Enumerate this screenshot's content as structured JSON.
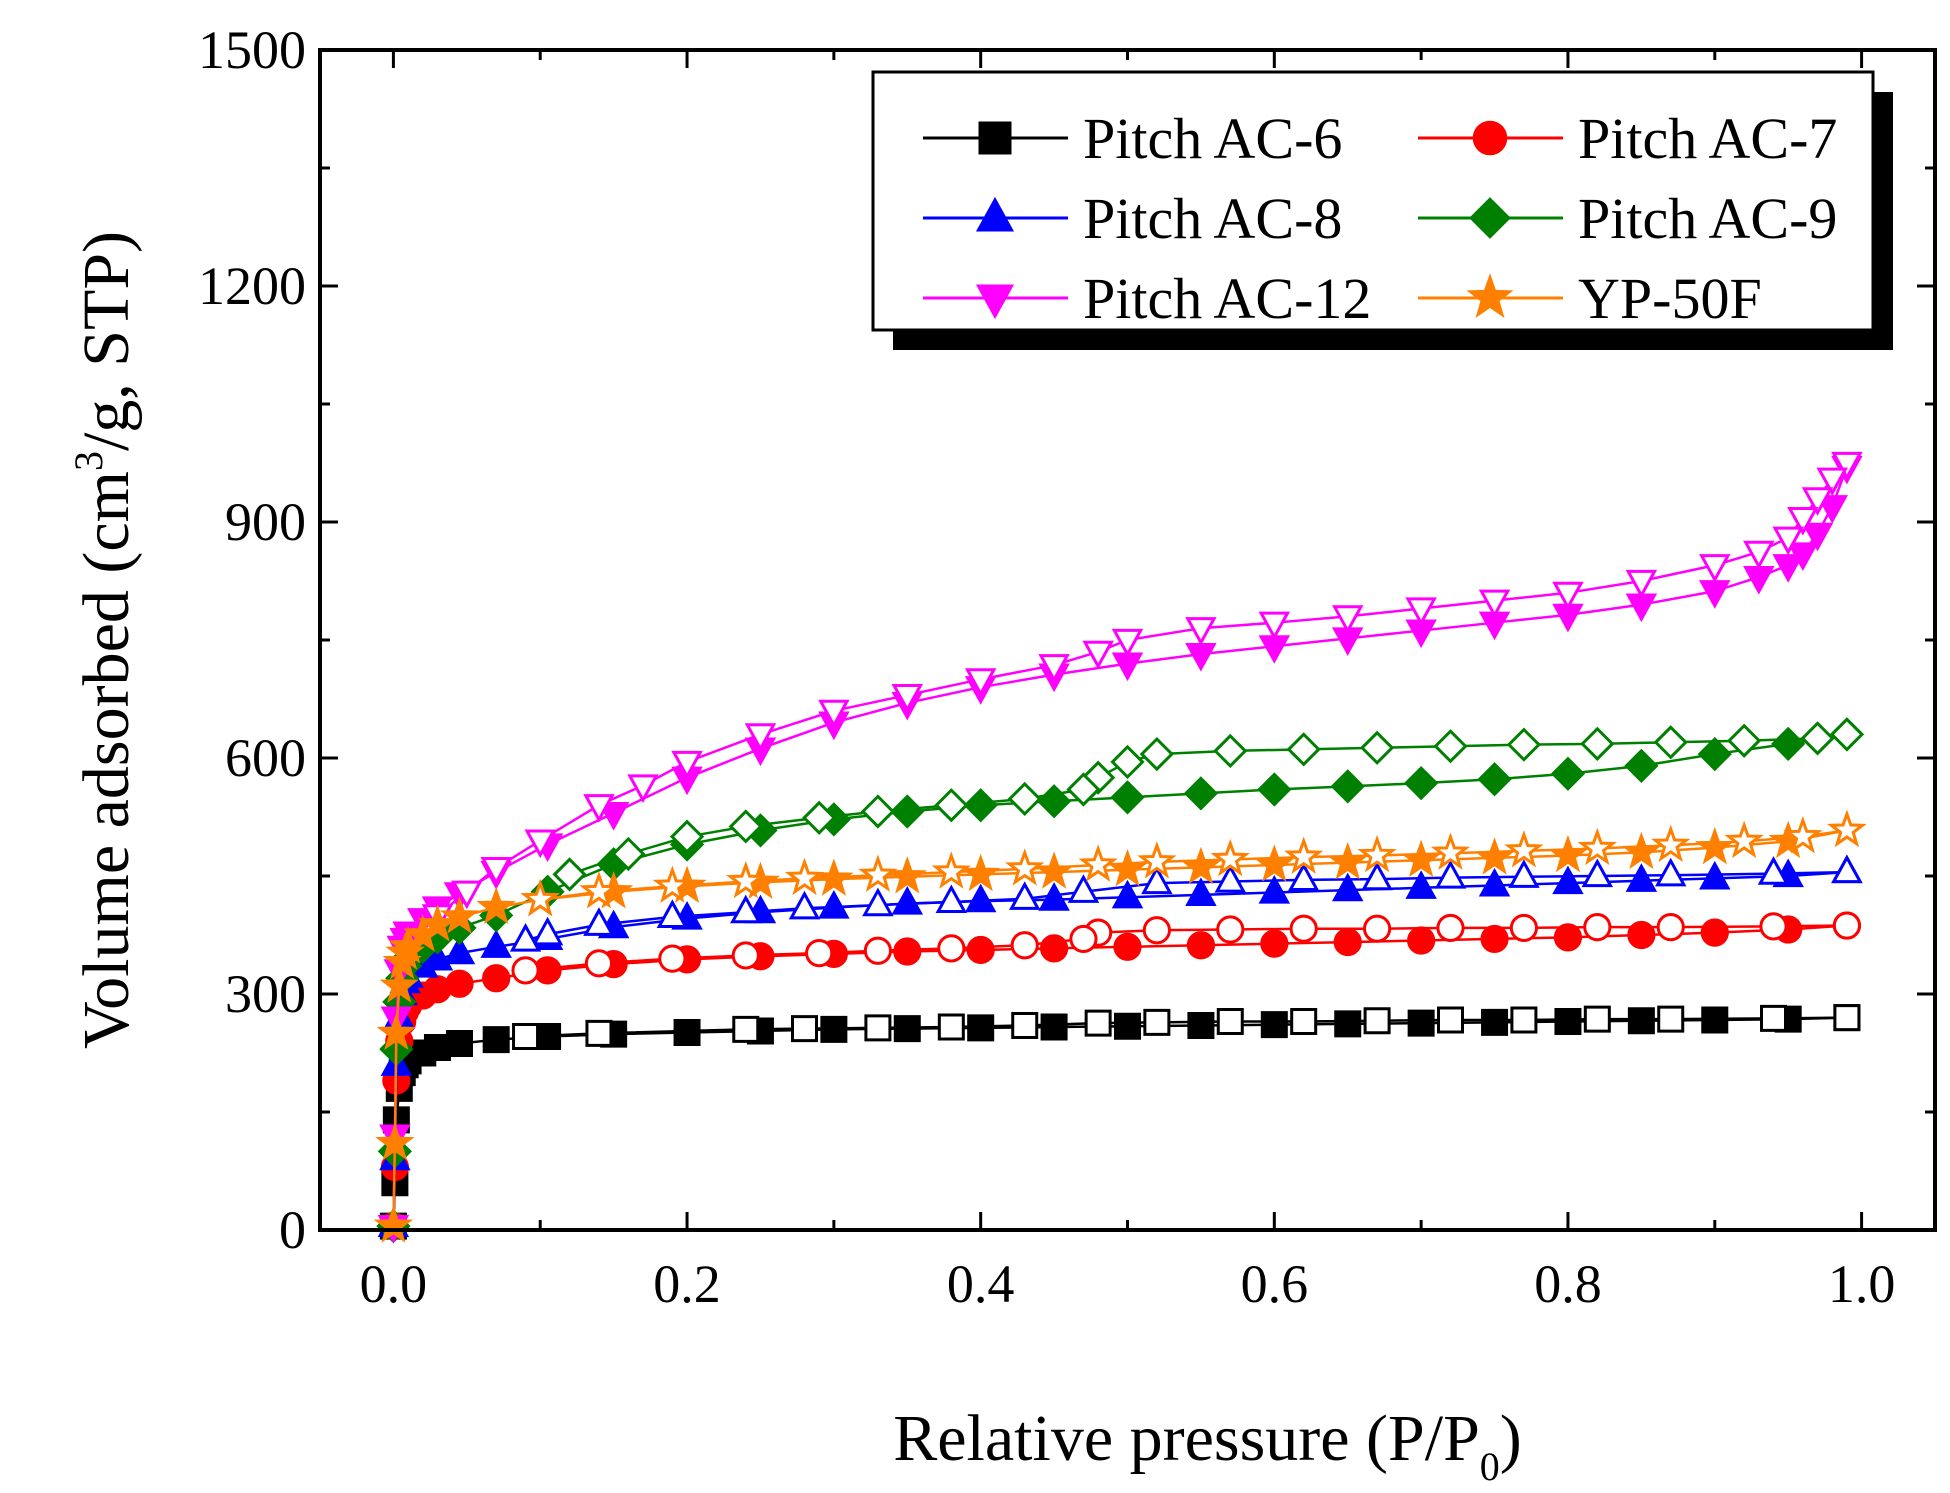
{
  "chart_data": {
    "type": "scatter",
    "xlabel": "Relative pressure (P/P",
    "xlabel_subscript": "0",
    "xlabel_end": ")",
    "ylabel": "Volume adsorbed (cm",
    "ylabel_superscript": "3",
    "ylabel_end": "/g, STP)",
    "xlim": [
      -0.05,
      1.05
    ],
    "ylim": [
      0,
      1500
    ],
    "xticks": [
      0.0,
      0.2,
      0.4,
      0.6,
      0.8,
      1.0
    ],
    "xtick_labels": [
      "0.0",
      "0.2",
      "0.4",
      "0.6",
      "0.8",
      "1.0"
    ],
    "yticks": [
      0,
      300,
      600,
      900,
      1200,
      1500
    ],
    "ytick_labels": [
      "0",
      "300",
      "600",
      "900",
      "1200",
      "1500"
    ],
    "legend_position": "top-right",
    "series": [
      {
        "name": "Pitch AC-6",
        "color": "#000000",
        "marker": "square",
        "adsorption": {
          "x": [
            0.0,
            0.001,
            0.002,
            0.004,
            0.006,
            0.008,
            0.01,
            0.02,
            0.03,
            0.045,
            0.07,
            0.105,
            0.15,
            0.2,
            0.25,
            0.3,
            0.35,
            0.4,
            0.45,
            0.5,
            0.55,
            0.6,
            0.65,
            0.7,
            0.75,
            0.8,
            0.85,
            0.9,
            0.95,
            0.99
          ],
          "y": [
            5,
            60,
            140,
            180,
            200,
            210,
            215,
            225,
            232,
            237,
            242,
            246,
            249,
            251,
            253,
            255,
            256,
            257,
            258,
            259,
            260,
            261,
            262,
            263,
            264,
            265,
            266,
            267,
            268,
            270
          ]
        },
        "desorption": {
          "x": [
            0.99,
            0.94,
            0.87,
            0.82,
            0.77,
            0.72,
            0.67,
            0.62,
            0.57,
            0.52,
            0.48,
            0.43,
            0.38,
            0.33,
            0.28,
            0.24,
            0.14,
            0.09
          ],
          "y": [
            270,
            269,
            268,
            268,
            267,
            267,
            266,
            265,
            265,
            264,
            263,
            260,
            258,
            257,
            256,
            255,
            250,
            246
          ]
        }
      },
      {
        "name": "Pitch AC-7",
        "color": "#ff0000",
        "marker": "circle",
        "adsorption": {
          "x": [
            0.0,
            0.001,
            0.002,
            0.004,
            0.006,
            0.008,
            0.01,
            0.02,
            0.03,
            0.045,
            0.07,
            0.105,
            0.15,
            0.2,
            0.25,
            0.3,
            0.35,
            0.4,
            0.45,
            0.5,
            0.55,
            0.6,
            0.65,
            0.7,
            0.75,
            0.8,
            0.85,
            0.9,
            0.95,
            0.99
          ],
          "y": [
            5,
            80,
            190,
            240,
            265,
            278,
            285,
            298,
            306,
            313,
            320,
            330,
            338,
            344,
            348,
            351,
            354,
            356,
            358,
            360,
            362,
            364,
            366,
            368,
            370,
            372,
            375,
            378,
            382,
            387
          ]
        },
        "desorption": {
          "x": [
            0.99,
            0.94,
            0.87,
            0.82,
            0.77,
            0.72,
            0.67,
            0.62,
            0.57,
            0.52,
            0.48,
            0.47,
            0.43,
            0.38,
            0.33,
            0.29,
            0.24,
            0.19,
            0.14,
            0.09
          ],
          "y": [
            387,
            386,
            385,
            385,
            384,
            384,
            383,
            383,
            382,
            381,
            378,
            370,
            362,
            358,
            355,
            352,
            349,
            345,
            339,
            330
          ]
        }
      },
      {
        "name": "Pitch AC-8",
        "color": "#0000ff",
        "marker": "triangle-up",
        "adsorption": {
          "x": [
            0.0,
            0.001,
            0.002,
            0.004,
            0.006,
            0.008,
            0.01,
            0.02,
            0.03,
            0.045,
            0.07,
            0.105,
            0.15,
            0.2,
            0.25,
            0.3,
            0.35,
            0.4,
            0.45,
            0.5,
            0.55,
            0.6,
            0.65,
            0.7,
            0.75,
            0.8,
            0.85,
            0.9,
            0.95,
            0.99
          ],
          "y": [
            5,
            90,
            210,
            270,
            300,
            315,
            322,
            335,
            344,
            352,
            360,
            370,
            385,
            396,
            404,
            410,
            415,
            418,
            420,
            423,
            426,
            429,
            432,
            435,
            438,
            441,
            444,
            447,
            450,
            455
          ]
        },
        "desorption": {
          "x": [
            0.99,
            0.94,
            0.87,
            0.82,
            0.77,
            0.72,
            0.67,
            0.62,
            0.57,
            0.52,
            0.47,
            0.43,
            0.38,
            0.33,
            0.28,
            0.24,
            0.19,
            0.14,
            0.105,
            0.09
          ],
          "y": [
            455,
            453,
            451,
            450,
            449,
            448,
            446,
            445,
            443,
            441,
            430,
            421,
            417,
            413,
            409,
            404,
            398,
            388,
            376,
            368
          ]
        }
      },
      {
        "name": "Pitch AC-9",
        "color": "#008000",
        "marker": "diamond",
        "adsorption": {
          "x": [
            0.0,
            0.001,
            0.002,
            0.004,
            0.006,
            0.008,
            0.01,
            0.02,
            0.03,
            0.045,
            0.07,
            0.105,
            0.15,
            0.2,
            0.25,
            0.3,
            0.35,
            0.4,
            0.45,
            0.5,
            0.55,
            0.6,
            0.65,
            0.7,
            0.75,
            0.8,
            0.85,
            0.9,
            0.95,
            0.99
          ],
          "y": [
            5,
            100,
            230,
            290,
            320,
            336,
            345,
            360,
            372,
            384,
            400,
            430,
            465,
            490,
            508,
            522,
            532,
            540,
            545,
            550,
            555,
            560,
            564,
            568,
            573,
            580,
            590,
            605,
            618,
            630
          ]
        },
        "desorption": {
          "x": [
            0.99,
            0.97,
            0.92,
            0.87,
            0.82,
            0.77,
            0.72,
            0.67,
            0.62,
            0.57,
            0.52,
            0.5,
            0.48,
            0.47,
            0.43,
            0.38,
            0.33,
            0.29,
            0.24,
            0.2,
            0.16,
            0.12
          ],
          "y": [
            630,
            625,
            622,
            620,
            618,
            617,
            615,
            613,
            611,
            609,
            605,
            595,
            575,
            560,
            548,
            540,
            532,
            524,
            513,
            500,
            478,
            452
          ]
        }
      },
      {
        "name": "Pitch AC-12",
        "color": "#ff00ff",
        "marker": "triangle-down",
        "adsorption": {
          "x": [
            0.0,
            0.001,
            0.002,
            0.004,
            0.006,
            0.008,
            0.01,
            0.02,
            0.03,
            0.045,
            0.07,
            0.105,
            0.15,
            0.2,
            0.25,
            0.3,
            0.35,
            0.4,
            0.45,
            0.5,
            0.55,
            0.6,
            0.65,
            0.7,
            0.75,
            0.8,
            0.85,
            0.9,
            0.93,
            0.95,
            0.96,
            0.97,
            0.98,
            0.99
          ],
          "y": [
            5,
            120,
            270,
            330,
            360,
            370,
            378,
            395,
            410,
            428,
            455,
            490,
            530,
            575,
            612,
            645,
            670,
            690,
            706,
            720,
            732,
            742,
            752,
            762,
            772,
            782,
            795,
            812,
            830,
            845,
            860,
            885,
            920,
            970
          ]
        },
        "desorption": {
          "x": [
            0.99,
            0.98,
            0.97,
            0.96,
            0.95,
            0.93,
            0.9,
            0.85,
            0.8,
            0.75,
            0.7,
            0.65,
            0.6,
            0.55,
            0.5,
            0.48,
            0.45,
            0.4,
            0.35,
            0.3,
            0.25,
            0.2,
            0.17,
            0.14,
            0.1,
            0.07,
            0.05,
            0.03
          ],
          "y": [
            975,
            955,
            930,
            905,
            880,
            862,
            845,
            825,
            810,
            800,
            790,
            780,
            772,
            765,
            750,
            735,
            718,
            700,
            680,
            660,
            630,
            595,
            565,
            540,
            495,
            460,
            430,
            400
          ]
        }
      },
      {
        "name": "YP-50F",
        "color": "#ff8000",
        "marker": "star",
        "adsorption": {
          "x": [
            0.0,
            0.001,
            0.002,
            0.004,
            0.006,
            0.008,
            0.01,
            0.02,
            0.03,
            0.045,
            0.07,
            0.1,
            0.15,
            0.2,
            0.25,
            0.3,
            0.35,
            0.4,
            0.45,
            0.5,
            0.55,
            0.6,
            0.65,
            0.7,
            0.75,
            0.8,
            0.85,
            0.9,
            0.95,
            0.99
          ],
          "y": [
            5,
            110,
            250,
            310,
            340,
            352,
            360,
            375,
            388,
            398,
            410,
            420,
            430,
            437,
            442,
            446,
            449,
            452,
            455,
            458,
            461,
            464,
            467,
            470,
            473,
            476,
            480,
            486,
            494,
            508
          ]
        },
        "desorption": {
          "x": [
            0.99,
            0.96,
            0.92,
            0.87,
            0.82,
            0.77,
            0.72,
            0.67,
            0.62,
            0.57,
            0.52,
            0.48,
            0.43,
            0.38,
            0.33,
            0.28,
            0.24,
            0.19,
            0.14,
            0.1
          ],
          "y": [
            508,
            500,
            494,
            489,
            485,
            482,
            479,
            476,
            474,
            471,
            468,
            464,
            459,
            455,
            451,
            447,
            443,
            437,
            430,
            420
          ]
        }
      }
    ]
  }
}
